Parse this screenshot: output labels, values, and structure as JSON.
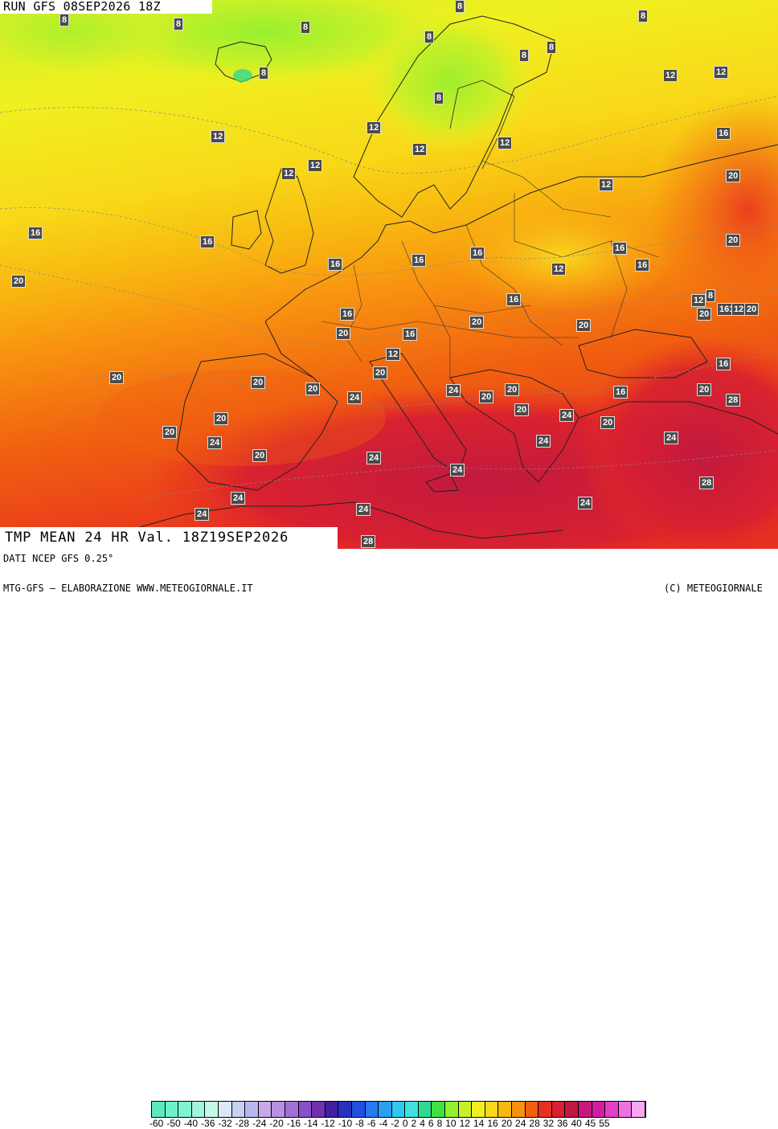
{
  "header": {
    "run_label": "RUN GFS 08SEP2026 18Z"
  },
  "footer_title": "TMP MEAN 24 HR Val. 18Z19SEP2026",
  "footer": {
    "source": "DATI NCEP GFS 0.25°",
    "credits": "MTG-GFS — ELABORAZIONE WWW.METEOGIORNALE.IT",
    "copyright": "(C) METEOGIORNALE"
  },
  "scale": {
    "ticks": [
      "-60",
      "-50",
      "-40",
      "-36",
      "-32",
      "-28",
      "-24",
      "-20",
      "-16",
      "-14",
      "-12",
      "-10",
      "-8",
      "-6",
      "-4",
      "-2",
      "0",
      "2",
      "4",
      "6",
      "8",
      "10",
      "12",
      "14",
      "16",
      "20",
      "24",
      "28",
      "32",
      "36",
      "40",
      "45",
      "55"
    ],
    "colors": [
      "#5fe8c0",
      "#6ff0c8",
      "#80f4d0",
      "#a0f6dc",
      "#c4f8e8",
      "#d8e8f8",
      "#c8d0f4",
      "#b8b8ee",
      "#c8a8e8",
      "#b890e0",
      "#a070d8",
      "#8850c8",
      "#7030b0",
      "#4020a0",
      "#2830c0",
      "#2050e0",
      "#2878f0",
      "#28a0f0",
      "#30c8f0",
      "#40e0e0",
      "#30d890",
      "#40e040",
      "#90f030",
      "#c8f028",
      "#f0f020",
      "#f8d818",
      "#f8b810",
      "#f89010",
      "#f06010",
      "#e83020",
      "#d82030",
      "#c01840",
      "#c81880",
      "#d020a0",
      "#e040c8",
      "#f070e0",
      "#f8a8f0"
    ]
  },
  "map": {
    "palette": {
      "sea_cold": "#c8f028",
      "mid": "#f8d818",
      "warm": "#f89010",
      "hot": "#f06010",
      "hotter": "#e83020",
      "hottest": "#d82030"
    },
    "labels": [
      {
        "t": "8"
      },
      {
        "t": "8"
      },
      {
        "t": "8"
      },
      {
        "t": "8"
      },
      {
        "t": "8"
      },
      {
        "t": "8"
      },
      {
        "t": "8"
      },
      {
        "t": "8"
      },
      {
        "t": "8"
      },
      {
        "t": "8"
      },
      {
        "t": "12"
      },
      {
        "t": "12"
      },
      {
        "t": "12"
      },
      {
        "t": "12"
      },
      {
        "t": "12"
      },
      {
        "t": "12"
      },
      {
        "t": "12"
      },
      {
        "t": "12"
      },
      {
        "t": "12"
      },
      {
        "t": "12"
      },
      {
        "t": "16"
      },
      {
        "t": "16"
      },
      {
        "t": "16"
      },
      {
        "t": "16"
      },
      {
        "t": "16"
      },
      {
        "t": "16"
      },
      {
        "t": "16"
      },
      {
        "t": "16"
      },
      {
        "t": "16"
      },
      {
        "t": "16"
      },
      {
        "t": "16"
      },
      {
        "t": "16"
      },
      {
        "t": "16"
      },
      {
        "t": "16"
      },
      {
        "t": "20"
      },
      {
        "t": "20"
      },
      {
        "t": "20"
      },
      {
        "t": "20"
      },
      {
        "t": "20"
      },
      {
        "t": "20"
      },
      {
        "t": "20"
      },
      {
        "t": "20"
      },
      {
        "t": "20"
      },
      {
        "t": "20"
      },
      {
        "t": "20"
      },
      {
        "t": "20"
      },
      {
        "t": "20"
      },
      {
        "t": "20"
      },
      {
        "t": "20"
      },
      {
        "t": "20"
      },
      {
        "t": "20"
      },
      {
        "t": "20"
      },
      {
        "t": "20"
      },
      {
        "t": "24"
      },
      {
        "t": "24"
      },
      {
        "t": "24"
      },
      {
        "t": "24"
      },
      {
        "t": "24"
      },
      {
        "t": "24"
      },
      {
        "t": "24"
      },
      {
        "t": "24"
      },
      {
        "t": "24"
      },
      {
        "t": "24"
      },
      {
        "t": "24"
      },
      {
        "t": "24"
      },
      {
        "t": "28"
      },
      {
        "t": "28"
      },
      {
        "t": "28"
      },
      {
        "t": "12"
      },
      {
        "t": "12"
      },
      {
        "t": "8"
      },
      {
        "t": "161"
      },
      {
        "t": "12"
      },
      {
        "t": "20"
      }
    ]
  }
}
